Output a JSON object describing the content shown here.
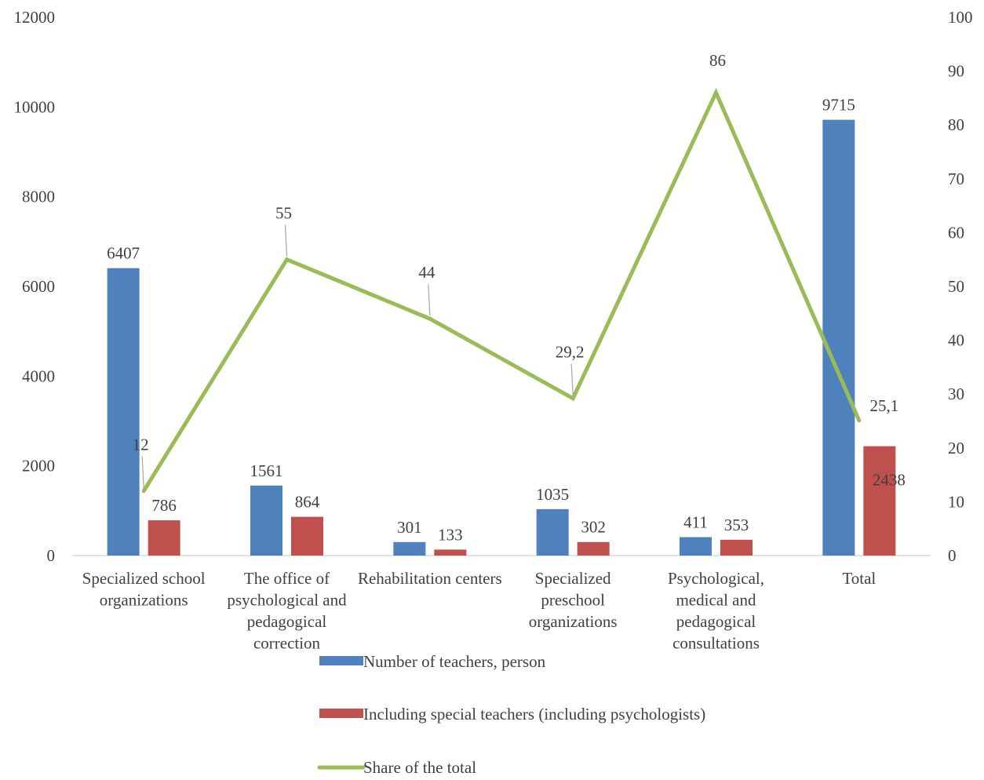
{
  "chart_data": {
    "type": "bar",
    "title": "",
    "categories": [
      "Specialized school organizations",
      "The office of psychological and pedagogical correction",
      "Rehabilitation centers",
      "Specialized preschool organizations",
      "Psychological, medical and pedagogical consultations",
      "Total"
    ],
    "series": [
      {
        "name": "Number of teachers, person",
        "type": "bar",
        "axis": "left",
        "color": "#4F81BD",
        "values": [
          6407,
          1561,
          301,
          1035,
          411,
          9715
        ],
        "labels": [
          "6407",
          "1561",
          "301",
          "1035",
          "411",
          "9715"
        ]
      },
      {
        "name": "Including special teachers (including psychologists)",
        "type": "bar",
        "axis": "left",
        "color": "#C0504D",
        "values": [
          786,
          864,
          133,
          302,
          353,
          2438
        ],
        "labels": [
          "786",
          "864",
          "133",
          "302",
          "353",
          "2438"
        ]
      },
      {
        "name": "Share of the total",
        "type": "line",
        "axis": "right",
        "color": "#9BBB59",
        "values": [
          12,
          55,
          44,
          29.2,
          86,
          25.1
        ],
        "labels": [
          "12",
          "55",
          "44",
          "29,2",
          "86",
          "25,1"
        ]
      }
    ],
    "y_left": {
      "range": [
        0,
        12000
      ],
      "ticks": [
        0,
        2000,
        4000,
        6000,
        8000,
        10000,
        12000
      ]
    },
    "y_right": {
      "range": [
        0,
        100
      ],
      "ticks": [
        0,
        10,
        20,
        30,
        40,
        50,
        60,
        70,
        80,
        90,
        100
      ]
    },
    "grid": false,
    "legend_position": "bottom"
  }
}
